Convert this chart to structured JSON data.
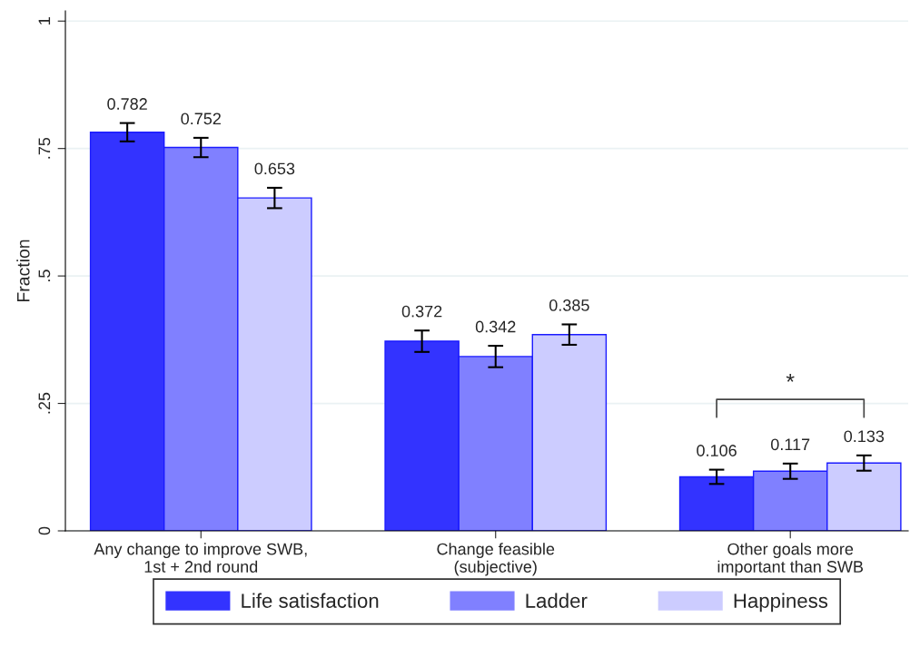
{
  "chart_data": {
    "type": "bar",
    "ylabel": "Fraction",
    "categories": [
      "Any change to improve SWB,\n1st + 2nd round",
      "Change feasible\n(subjective)",
      "Other goals more\nimportant than SWB"
    ],
    "series": [
      {
        "name": "Life satisfaction",
        "color": "#3333ff",
        "values": [
          0.782,
          0.372,
          0.106
        ],
        "errors": [
          0.018,
          0.021,
          0.014
        ]
      },
      {
        "name": "Ladder",
        "color": "#8080ff",
        "values": [
          0.752,
          0.342,
          0.117
        ],
        "errors": [
          0.019,
          0.021,
          0.015
        ]
      },
      {
        "name": "Happiness",
        "color": "#ccccff",
        "values": [
          0.653,
          0.385,
          0.133
        ],
        "errors": [
          0.02,
          0.02,
          0.015
        ]
      }
    ],
    "ylim": [
      0,
      1.02
    ],
    "yticks": [
      {
        "value": 0,
        "label": "0"
      },
      {
        "value": 0.25,
        "label": ".25"
      },
      {
        "value": 0.5,
        "label": ".5"
      },
      {
        "value": 0.75,
        "label": ".75"
      },
      {
        "value": 1,
        "label": "1"
      }
    ],
    "grid": "y",
    "legend": "bottom",
    "data_labels": true,
    "annotations": [
      "*"
    ]
  }
}
